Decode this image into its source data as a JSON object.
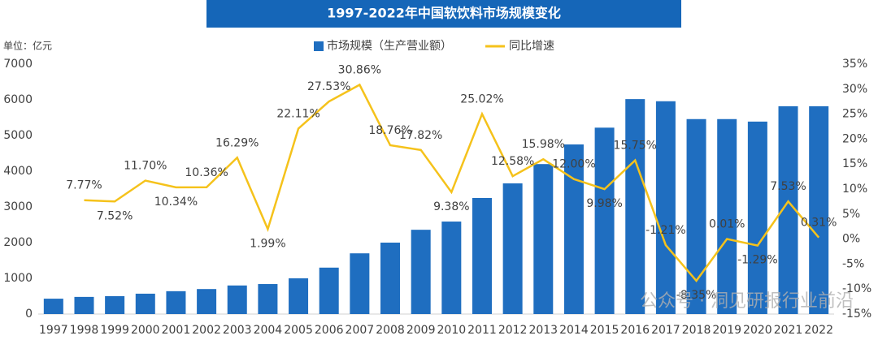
{
  "chart_data": {
    "type": "bar_line",
    "title": "1997-2022年中国软饮料市场规模变化",
    "unit_label": "单位：亿元",
    "watermark": "公众号 · 洞见研报行业前沿",
    "categories": [
      "1997",
      "1998",
      "1999",
      "2000",
      "2001",
      "2002",
      "2003",
      "2004",
      "2005",
      "2006",
      "2007",
      "2008",
      "2009",
      "2010",
      "2011",
      "2012",
      "2013",
      "2014",
      "2015",
      "2016",
      "2017",
      "2018",
      "2019",
      "2020",
      "2021",
      "2022"
    ],
    "series": [
      {
        "name": "市场规模（生产营业额）",
        "color": "#1f6ec0",
        "type": "bar",
        "values": [
          430,
          480,
          500,
          570,
          640,
          700,
          800,
          840,
          1000,
          1300,
          1700,
          2000,
          2360,
          2590,
          3250,
          3660,
          4200,
          4750,
          5220,
          6020,
          5960,
          5460,
          5460,
          5390,
          5820,
          5820
        ]
      },
      {
        "name": "同比增速",
        "color": "#f5c21b",
        "type": "line",
        "axis": "y2",
        "values": [
          null,
          7.77,
          7.52,
          11.7,
          10.34,
          10.36,
          16.29,
          1.99,
          22.11,
          27.53,
          30.86,
          18.76,
          17.82,
          9.38,
          25.02,
          12.58,
          15.98,
          12.0,
          9.98,
          15.75,
          -1.21,
          -8.35,
          0.01,
          -1.29,
          7.53,
          0.31
        ],
        "value_labels": [
          null,
          "7.77%",
          "7.52%",
          "11.70%",
          "10.34%",
          "10.36%",
          "16.29%",
          "1.99%",
          "22.11%",
          "27.53%",
          "30.86%",
          "18.76%",
          "17.82%",
          "9.38%",
          "25.02%",
          "12.58%",
          "15.98%",
          "12.00%",
          "9.98%",
          "15.75%",
          "-1.21%",
          "-8.35%",
          "0.01%",
          "-1.29%",
          "7.53%",
          "0.31%"
        ]
      }
    ],
    "ylim": [
      0,
      7000
    ],
    "yticks": [
      0,
      1000,
      2000,
      3000,
      4000,
      5000,
      6000,
      7000
    ],
    "y2lim": [
      -15,
      35
    ],
    "y2ticks": [
      {
        "value": -15,
        "label": "-15%"
      },
      {
        "value": -10,
        "label": "-10%"
      },
      {
        "value": -5,
        "label": "-5%"
      },
      {
        "value": 0,
        "label": "0%"
      },
      {
        "value": 5,
        "label": "5%"
      },
      {
        "value": 10,
        "label": "10%"
      },
      {
        "value": 15,
        "label": "15%"
      },
      {
        "value": 20,
        "label": "20%"
      },
      {
        "value": 25,
        "label": "25%"
      },
      {
        "value": 30,
        "label": "30%"
      },
      {
        "value": 35,
        "label": "35%"
      }
    ],
    "grid": false,
    "legend": "top"
  }
}
